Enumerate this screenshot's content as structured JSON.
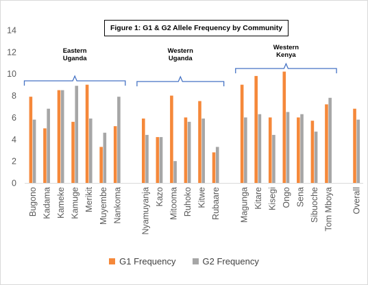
{
  "chart_data": {
    "type": "bar",
    "title": "Figure 1: G1 & G2 Allele Frequency by Community",
    "ylim": [
      0,
      14
    ],
    "yticks": [
      0,
      2,
      4,
      6,
      8,
      10,
      12,
      14
    ],
    "grid": false,
    "legend_position": "bottom",
    "colors": {
      "G1 Frequency": "#f5883a",
      "G2 Frequency": "#a6a6a6",
      "group_brace": "#4472c4"
    },
    "groups": [
      {
        "label_lines": [
          "Eastern",
          "Uganda"
        ],
        "categories": [
          "Bugono",
          "Kadama",
          "Kameke",
          "Kamuge",
          "Merikit",
          "Muyembe",
          "Nankoma"
        ]
      },
      {
        "label_lines": [
          "Western",
          "Uganda"
        ],
        "categories": [
          "Nyamuyanja",
          "Kazo",
          "Mitooma",
          "Ruhoko",
          "Kitwe",
          "Rubaare"
        ]
      },
      {
        "label_lines": [
          "Western",
          "Kenya"
        ],
        "categories": [
          "Magunga",
          "Kitare",
          "Kisegi",
          "Ongo",
          "Sena",
          "Sibuoche",
          "Tom Mboya"
        ]
      }
    ],
    "categories": [
      "Bugono",
      "Kadama",
      "Kameke",
      "Kamuge",
      "Merikit",
      "Muyembe",
      "Nankoma",
      "Nyamuyanja",
      "Kazo",
      "Mitooma",
      "Ruhoko",
      "Kitwe",
      "Rubaare",
      "Magunga",
      "Kitare",
      "Kisegi",
      "Ongo",
      "Sena",
      "Sibuoche",
      "Tom Mboya",
      "Overall"
    ],
    "series": [
      {
        "name": "G1 Frequency",
        "values": [
          7.9,
          5.0,
          8.5,
          5.6,
          9.0,
          3.3,
          5.2,
          5.9,
          4.2,
          8.0,
          6.0,
          7.5,
          2.8,
          9.0,
          9.8,
          6.0,
          10.2,
          6.0,
          5.7,
          7.2,
          6.8
        ]
      },
      {
        "name": "G2 Frequency",
        "values": [
          5.8,
          6.8,
          8.5,
          8.9,
          5.9,
          4.6,
          7.9,
          4.4,
          4.2,
          2.0,
          5.6,
          5.9,
          3.3,
          6.0,
          6.3,
          4.4,
          6.5,
          6.3,
          4.7,
          7.8,
          5.8
        ]
      }
    ]
  }
}
